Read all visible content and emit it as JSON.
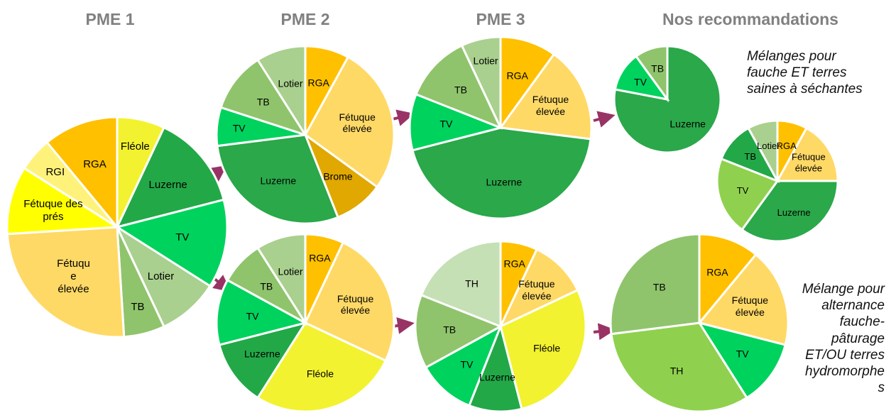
{
  "headings": [
    "PME 1",
    "PME 2",
    "PME 3",
    "Nos recommandations"
  ],
  "annotations": [
    "Mélanges pour\nfauche ET terres\nsaines à séchantes",
    "Mélange pour\nalternance\nfauche-\npâturage\nET/OU terres\nhydromorphe\ns"
  ],
  "chart_data": [
    {
      "type": "pie",
      "categories": [
        "Fléole",
        "Luzerne",
        "TV",
        "Lotier",
        "TB",
        "Fétuqu\ne\nélevée",
        "Fétuque des\nprés",
        "RGI",
        "RGA"
      ],
      "values": [
        7,
        14,
        13,
        9,
        6,
        25,
        10,
        5,
        11
      ],
      "colors": [
        "#f2f230",
        "#23a848",
        "#00d25e",
        "#a9d08e",
        "#8fc46c",
        "#ffd966",
        "#ffff00",
        "#fff27a",
        "#ffc000"
      ]
    },
    {
      "type": "pie",
      "categories": [
        "RGA",
        "Fétuque\nélevée",
        "Brome",
        "Luzerne",
        "TV",
        "TB",
        "Lotier"
      ],
      "values": [
        8,
        27,
        9,
        29,
        7,
        11,
        9
      ],
      "colors": [
        "#ffc000",
        "#ffd966",
        "#e0a800",
        "#2aa84a",
        "#00d25e",
        "#8fc46c",
        "#a9d08e"
      ]
    },
    {
      "type": "pie",
      "categories": [
        "RGA",
        "Fétuque\nélevée",
        "Fléole",
        "Luzerne",
        "TV",
        "TB",
        "Lotier"
      ],
      "values": [
        7,
        25,
        27,
        12,
        12,
        8,
        9
      ],
      "colors": [
        "#ffc000",
        "#ffd966",
        "#f2f230",
        "#23a848",
        "#00d25e",
        "#8fc46c",
        "#a9d08e"
      ]
    },
    {
      "type": "pie",
      "categories": [
        "RGA",
        "Fétuque\nélevée",
        "Luzerne",
        "TV",
        "TB",
        "Lotier"
      ],
      "values": [
        10,
        17,
        44,
        10,
        12,
        7
      ],
      "colors": [
        "#ffc000",
        "#ffd966",
        "#2aa84a",
        "#00d25e",
        "#8fc46c",
        "#a9d08e"
      ]
    },
    {
      "type": "pie",
      "categories": [
        "RGA",
        "Fétuque\nélevée",
        "Fléole",
        "Luzerne",
        "TV",
        "TB",
        "TH"
      ],
      "values": [
        7,
        11,
        28,
        10,
        11,
        14,
        19
      ],
      "colors": [
        "#ffc000",
        "#ffd966",
        "#f2f230",
        "#23a848",
        "#00d25e",
        "#8fc46c",
        "#c5e0b4"
      ]
    },
    {
      "type": "pie",
      "categories": [
        "Luzerne",
        "TV",
        "TB"
      ],
      "values": [
        78,
        12,
        10
      ],
      "colors": [
        "#2aa84a",
        "#00d25e",
        "#8fc46c"
      ]
    },
    {
      "type": "pie",
      "categories": [
        "RGA",
        "Fétuque\nélevée",
        "Luzerne",
        "TV",
        "TB",
        "Lotier"
      ],
      "values": [
        8,
        17,
        35,
        21,
        11,
        8
      ],
      "colors": [
        "#ffc000",
        "#ffd966",
        "#2aa84a",
        "#8fd14f",
        "#23a848",
        "#a9d08e"
      ]
    },
    {
      "type": "pie",
      "categories": [
        "RGA",
        "Fétuque\nélevée",
        "TV",
        "TH",
        "TB"
      ],
      "values": [
        11,
        18,
        12,
        32,
        27
      ],
      "colors": [
        "#ffc000",
        "#ffd966",
        "#00d25e",
        "#8fd14f",
        "#8fc46c"
      ]
    }
  ]
}
